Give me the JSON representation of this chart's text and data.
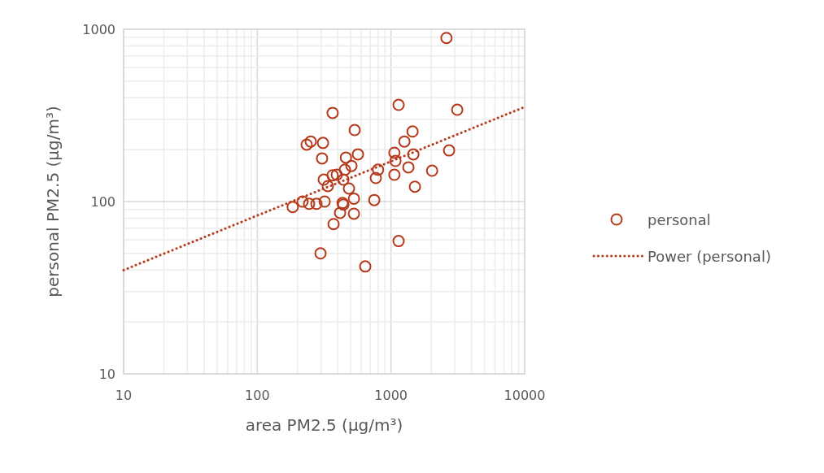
{
  "chart_data": {
    "type": "scatter",
    "xlabel": "area PM2.5 (µg/m³)",
    "ylabel": "personal PM2.5 (µg/m³)",
    "log": "xy",
    "xlim": [
      10,
      10000
    ],
    "ylim": [
      10,
      1000
    ],
    "xticks": [
      10,
      100,
      1000,
      10000
    ],
    "yticks": [
      10,
      100,
      1000
    ],
    "grid": true,
    "legend": "right",
    "marker": "circle",
    "series": [
      {
        "name": "personal",
        "color": "#b5391a",
        "x": [
          2600,
          366,
          1140,
          3130,
          234,
          251,
          310,
          305,
          535,
          1450,
          1260,
          2720,
          566,
          1060,
          460,
          1080,
          1470,
          800,
          506,
          452,
          314,
          366,
          393,
          337,
          440,
          770,
          1060,
          1350,
          2030,
          485,
          1510,
          319,
          528,
          750,
          184,
          218,
          244,
          277,
          434,
          440,
          416,
          528,
          372,
          1140,
          297,
          642
        ],
        "values": [
          890,
          327,
          364,
          341,
          214,
          223,
          219,
          178,
          260,
          255,
          223,
          198,
          188,
          192,
          180,
          172,
          188,
          153,
          161,
          153,
          134,
          142,
          143,
          123,
          134,
          137,
          143,
          158,
          151,
          119,
          122,
          100,
          104,
          102,
          93,
          100,
          97,
          97,
          98,
          96,
          86,
          85,
          74,
          59,
          50,
          42
        ]
      },
      {
        "name": "Power (personal)",
        "type": "line",
        "color": "#b5391a",
        "line_style": "dotted",
        "marker": "none",
        "x": [
          10,
          100,
          1000,
          10000
        ],
        "values": [
          40,
          83,
          171,
          354
        ]
      }
    ]
  }
}
